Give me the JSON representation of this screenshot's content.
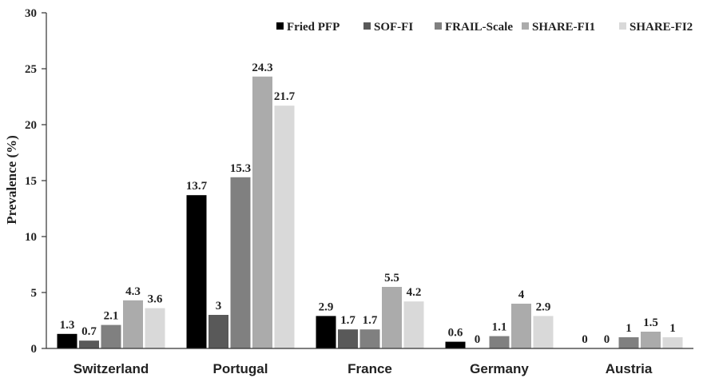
{
  "chart_data": {
    "type": "bar",
    "title": "",
    "xlabel": "",
    "ylabel": "Prevalence (%)",
    "ylim": [
      0,
      30
    ],
    "yticks": [
      0,
      5,
      10,
      15,
      20,
      25,
      30
    ],
    "grid": false,
    "legend_position": "top-right",
    "categories": [
      "Switzerland",
      "Portugal",
      "France",
      "Germany",
      "Austria"
    ],
    "series": [
      {
        "name": "Fried PFP",
        "color": "#000000",
        "values": [
          1.3,
          13.7,
          2.9,
          0.6,
          0
        ]
      },
      {
        "name": "SOF-FI",
        "color": "#595959",
        "values": [
          0.7,
          3,
          1.7,
          0,
          0
        ]
      },
      {
        "name": "FRAIL-Scale",
        "color": "#808080",
        "values": [
          2.1,
          15.3,
          1.7,
          1.1,
          1
        ]
      },
      {
        "name": "SHARE-FI1",
        "color": "#ababab",
        "values": [
          4.3,
          24.3,
          5.5,
          4,
          1.5
        ]
      },
      {
        "name": "SHARE-FI2",
        "color": "#d9d9d9",
        "values": [
          3.6,
          21.7,
          4.2,
          2.9,
          1
        ]
      }
    ]
  }
}
